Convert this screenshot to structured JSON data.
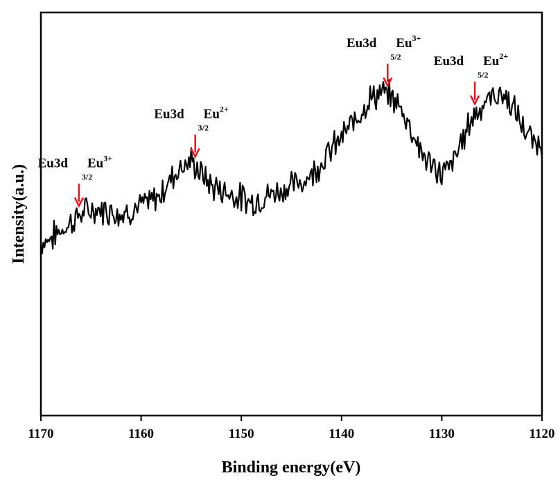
{
  "chart_data": {
    "type": "line",
    "xlabel": "Binding energy(eV)",
    "ylabel": "Intensity(a.u.)",
    "xlim": [
      1170,
      1120
    ],
    "x_reversed": true,
    "ylim": [
      0,
      100
    ],
    "y_ticks_shown": false,
    "grid": false,
    "line_color": "#000000",
    "arrow_color": "#e8141c",
    "x_ticks": [
      1170,
      1160,
      1150,
      1140,
      1130,
      1120
    ],
    "x_tick_labels": [
      "1170",
      "1160",
      "1150",
      "1140",
      "1130",
      "1120"
    ],
    "series": [
      {
        "noise_amplitude": 3,
        "x": [
          1170,
          1169,
          1168,
          1167,
          1166,
          1165,
          1164,
          1163,
          1162,
          1161,
          1160,
          1159,
          1158,
          1157,
          1156,
          1155,
          1154,
          1153,
          1152,
          1151,
          1150,
          1149,
          1148,
          1147,
          1146,
          1145,
          1144,
          1143,
          1142,
          1141,
          1140,
          1139,
          1138,
          1137,
          1136,
          1135,
          1134,
          1133,
          1132,
          1131,
          1130,
          1129,
          1128,
          1127,
          1126,
          1125,
          1124,
          1123,
          1122,
          1121,
          1120
        ],
        "y": [
          43,
          44,
          46,
          48,
          50,
          51,
          51,
          51,
          50,
          51,
          52,
          53,
          55,
          59,
          62,
          63,
          60,
          57,
          56,
          55,
          54,
          53,
          54,
          55,
          56,
          57,
          58,
          60,
          63,
          66,
          69,
          72,
          76,
          79,
          80,
          79,
          76,
          71,
          65,
          62,
          60,
          62,
          68,
          74,
          77,
          79,
          80,
          77,
          72,
          68,
          67
        ]
      }
    ]
  },
  "annotations": [
    {
      "label": "Eu3d",
      "subscript": "3/2",
      "ion": "Eu",
      "charge": "3+",
      "x": 1166.2
    },
    {
      "label": "Eu3d",
      "subscript": "3/2",
      "ion": "Eu",
      "charge": "2+",
      "x": 1154.6
    },
    {
      "label": "Eu3d",
      "subscript": "5/2",
      "ion": "Eu",
      "charge": "3+",
      "x": 1135.4
    },
    {
      "label": "Eu3d",
      "subscript": "5/2",
      "ion": "Eu",
      "charge": "2+",
      "x": 1126.7
    }
  ]
}
